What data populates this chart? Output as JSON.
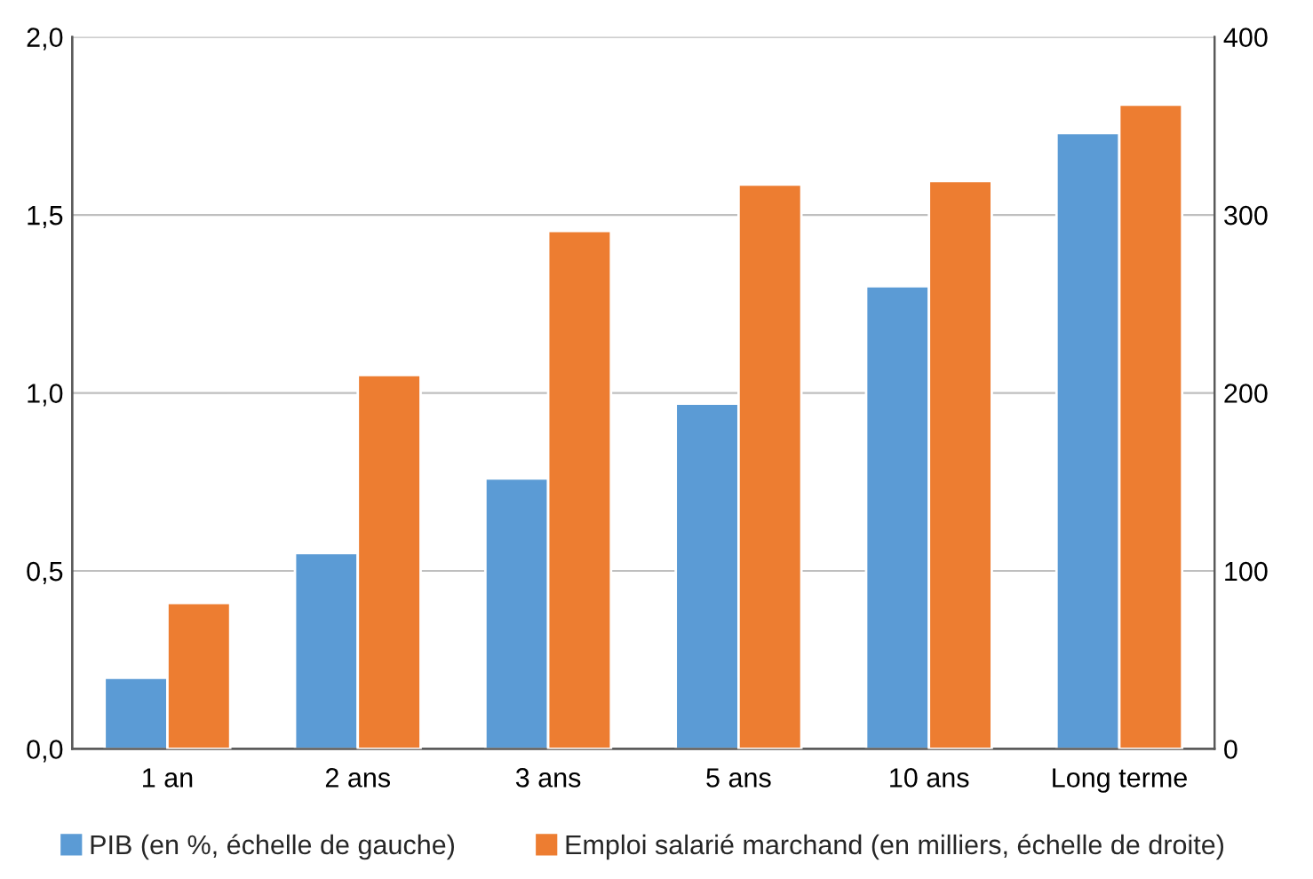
{
  "chart_data": {
    "type": "bar",
    "categories": [
      "1 an",
      "2 ans",
      "3 ans",
      "5 ans",
      "10 ans",
      "Long terme"
    ],
    "series": [
      {
        "name": "PIB (en %, échelle de gauche)",
        "color": "#5b9bd5",
        "values": [
          0.2,
          0.55,
          0.76,
          0.97,
          1.3,
          1.73
        ]
      },
      {
        "name": "Emploi salarié marchand (en milliers, échelle de droite)",
        "color": "#ed7d31",
        "axis": "y2",
        "values": [
          82,
          210,
          291,
          317,
          319,
          362
        ]
      }
    ],
    "ylim": [
      0,
      2
    ],
    "yticks": [
      {
        "value": 0,
        "label": "0,0"
      },
      {
        "value": 0.5,
        "label": "0,5"
      },
      {
        "value": 1,
        "label": "1,0"
      },
      {
        "value": 1.5,
        "label": "1,5"
      },
      {
        "value": 2,
        "label": "2,0"
      }
    ],
    "y2lim": [
      0,
      400
    ],
    "y2ticks": [
      0,
      100,
      200,
      300,
      400
    ],
    "grid": "y",
    "legend": "bottom"
  }
}
